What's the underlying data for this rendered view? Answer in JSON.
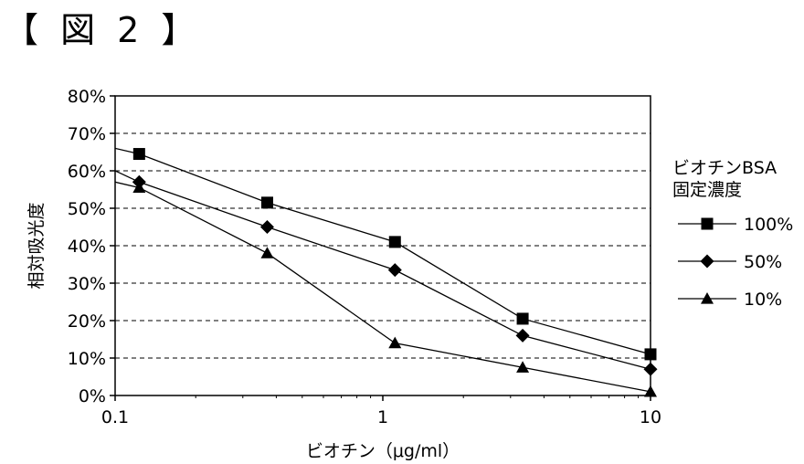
{
  "figure_label": "【 図 2 】",
  "chart_data": {
    "type": "line",
    "title": "",
    "xlabel": "ビオチン（μg/ml）",
    "ylabel": "相対吸光度",
    "xscale": "log",
    "xlim": [
      0.1,
      10
    ],
    "ylim": [
      0,
      80
    ],
    "x_ticks": [
      0.1,
      1,
      10
    ],
    "x_tick_labels": [
      "0.1",
      "1",
      "10"
    ],
    "y_ticks": [
      0,
      10,
      20,
      30,
      40,
      50,
      60,
      70,
      80
    ],
    "y_tick_labels": [
      "0%",
      "10%",
      "20%",
      "30%",
      "40%",
      "50%",
      "60%",
      "70%",
      "80%"
    ],
    "grid": "horizontal dashed",
    "legend_title": [
      "ビオチンBSA",
      "固定濃度"
    ],
    "legend_position": "right",
    "series": [
      {
        "name": "100%",
        "marker": "square",
        "x": [
          0.1,
          0.123,
          0.37,
          1.11,
          3.33,
          10
        ],
        "y": [
          66,
          64.5,
          51.5,
          41,
          20.5,
          11
        ]
      },
      {
        "name": "50%",
        "marker": "diamond",
        "x": [
          0.1,
          0.123,
          0.37,
          1.11,
          3.33,
          10
        ],
        "y": [
          60,
          57,
          45,
          33.5,
          16,
          7
        ]
      },
      {
        "name": "10%",
        "marker": "triangle",
        "x": [
          0.1,
          0.123,
          0.37,
          1.11,
          3.33,
          10
        ],
        "y": [
          57,
          55.5,
          38,
          14,
          7.5,
          1
        ]
      }
    ]
  }
}
